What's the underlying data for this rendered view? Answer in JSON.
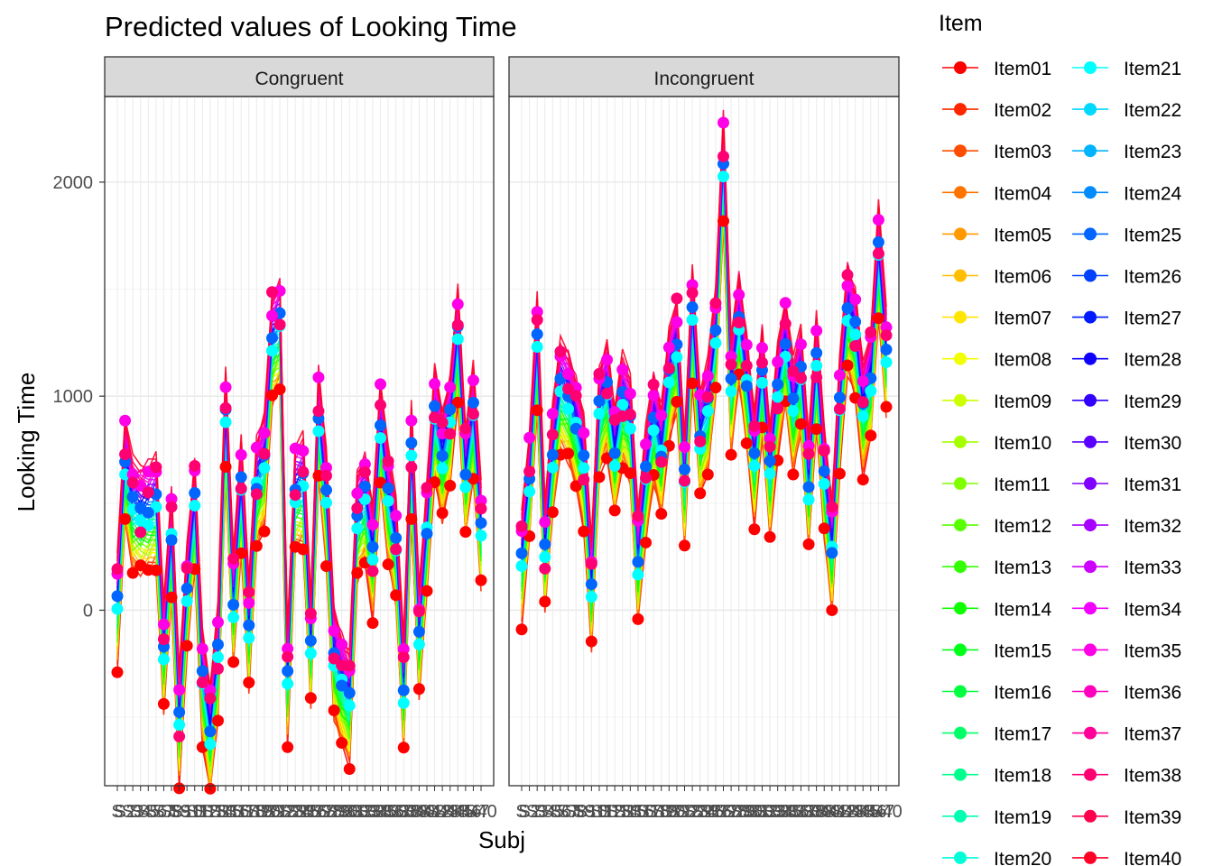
{
  "chart_data": {
    "type": "line",
    "title": "Predicted values of Looking Time",
    "xlabel": "Subj",
    "ylabel": "Looking Time",
    "ylim": [
      -820,
      2400
    ],
    "yticks": [
      0,
      1000,
      2000
    ],
    "grid": true,
    "facet_labels": [
      "Congruent",
      "Incongruent"
    ],
    "legend": {
      "title": "Item",
      "placement": "right",
      "items": [
        "Item01",
        "Item02",
        "Item03",
        "Item04",
        "Item05",
        "Item06",
        "Item07",
        "Item08",
        "Item09",
        "Item10",
        "Item11",
        "Item12",
        "Item13",
        "Item14",
        "Item15",
        "Item16",
        "Item17",
        "Item18",
        "Item19",
        "Item20",
        "Item21",
        "Item22",
        "Item23",
        "Item24",
        "Item25",
        "Item26",
        "Item27",
        "Item28",
        "Item29",
        "Item30",
        "Item31",
        "Item32",
        "Item33",
        "Item34",
        "Item35",
        "Item36",
        "Item37",
        "Item38",
        "Item39",
        "Item40"
      ],
      "colors": [
        "#ff0000",
        "#ff2600",
        "#ff4d00",
        "#ff7300",
        "#ff9900",
        "#ffbf00",
        "#ffe500",
        "#f2ff00",
        "#ccff00",
        "#a6ff00",
        "#80ff00",
        "#59ff00",
        "#33ff00",
        "#0dff00",
        "#00ff19",
        "#00ff40",
        "#00ff66",
        "#00ff8c",
        "#00ffb2",
        "#00ffd9",
        "#00ffff",
        "#00d9ff",
        "#00b3ff",
        "#008cff",
        "#0066ff",
        "#0040ff",
        "#001aff",
        "#0d00ff",
        "#3300ff",
        "#5900ff",
        "#8000ff",
        "#a600ff",
        "#cc00ff",
        "#f200ff",
        "#ff00e6",
        "#ff00bf",
        "#ff0099",
        "#ff0073",
        "#ff004d",
        "#ff0026"
      ]
    },
    "subjects_count": 40,
    "x_tick_prefix": "S",
    "x_tick_first": "S",
    "x_tick_last": "S40",
    "item_offset_range": [
      -350,
      150
    ],
    "series": [
      {
        "name": "Congruent",
        "values": [
          100,
          760,
          540,
          520,
          530,
          560,
          -120,
          410,
          -450,
          160,
          550,
          -250,
          -500,
          -150,
          980,
          100,
          640,
          -20,
          650,
          750,
          1330,
          1390,
          -250,
          630,
          650,
          -100,
          970,
          580,
          -150,
          -270,
          -360,
          500,
          580,
          330,
          930,
          580,
          380,
          -300,
          800,
          -50,
          440,
          980,
          780,
          940,
          1360,
          700,
          980,
          450
        ]
      },
      {
        "name": "Incongruent",
        "values": [
          300,
          680,
          1300,
          350,
          800,
          1100,
          1050,
          930,
          750,
          180,
          980,
          1100,
          800,
          1030,
          950,
          300,
          690,
          950,
          800,
          1150,
          1300,
          660,
          1450,
          880,
          1000,
          1350,
          2160,
          1100,
          1420,
          1130,
          760,
          1180,
          700,
          1090,
          1310,
          1000,
          1180,
          650,
          1220,
          700,
          350,
          1020,
          1470,
          1350,
          1000,
          1150,
          1730,
          1260
        ]
      }
    ]
  }
}
